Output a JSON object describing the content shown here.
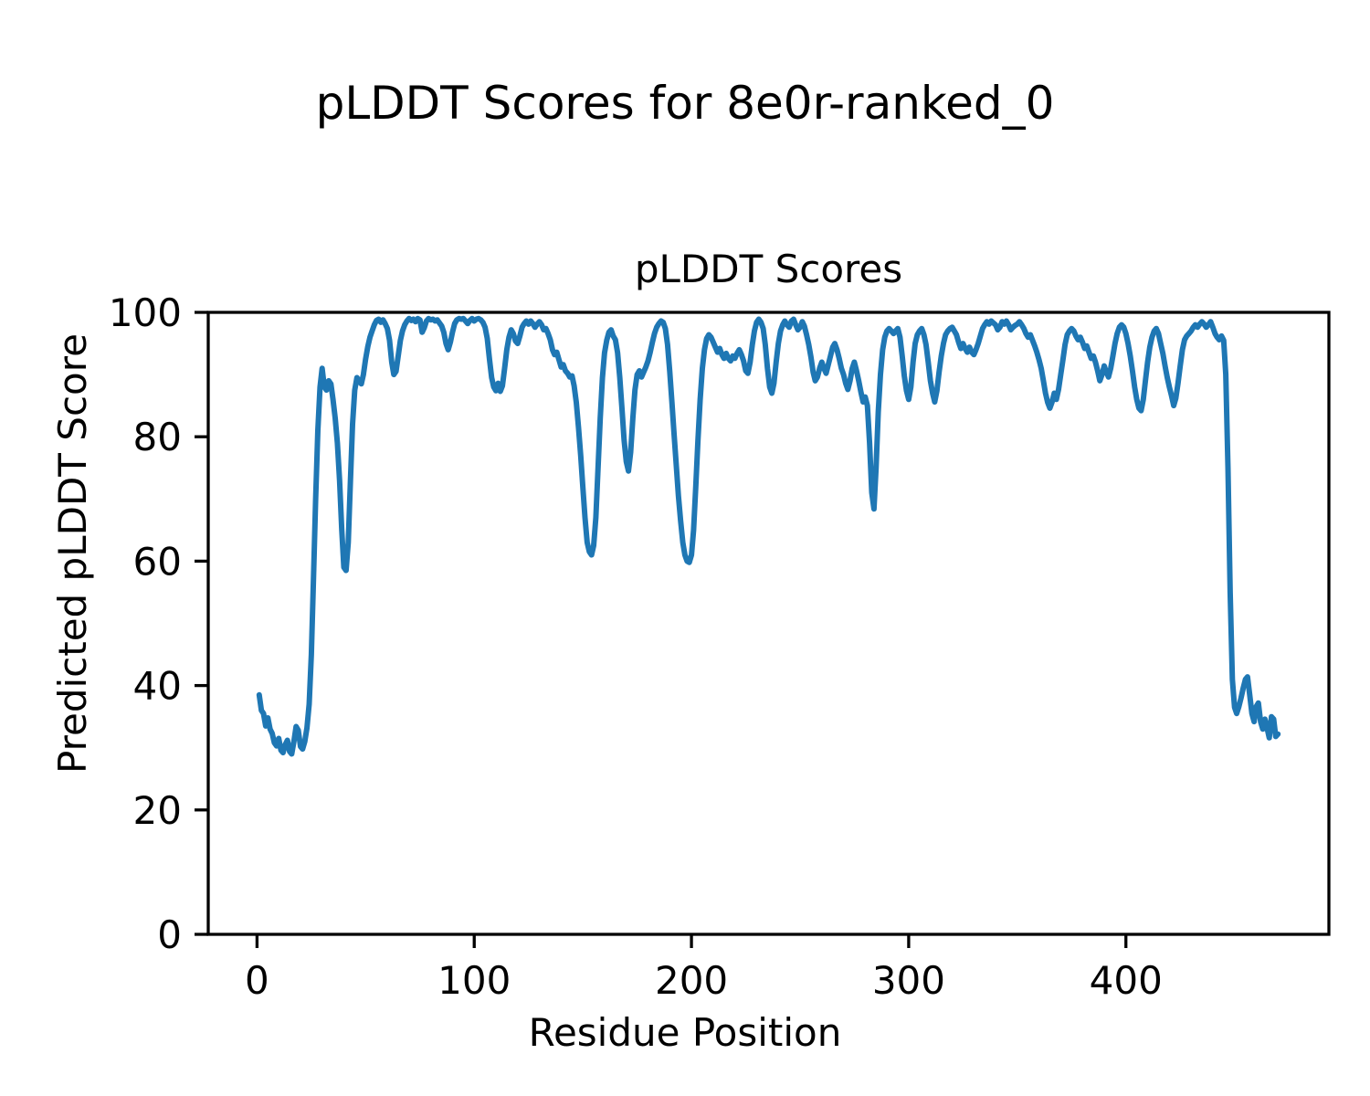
{
  "figure": {
    "suptitle": "pLDDT Scores for 8e0r-ranked_0",
    "background_color": "#ffffff",
    "text_color": "#000000"
  },
  "chart_data": {
    "type": "line",
    "title": "pLDDT Scores",
    "xlabel": "Residue Position",
    "ylabel": "Predicted pLDDT Score",
    "xlim": [
      -22.45,
      493.45
    ],
    "ylim": [
      0,
      100
    ],
    "xticks": [
      0,
      100,
      200,
      300,
      400
    ],
    "yticks": [
      0,
      20,
      40,
      60,
      80,
      100
    ],
    "grid": false,
    "legend": null,
    "line_color": "#1f77b4",
    "axis_color": "#000000",
    "series": [
      {
        "name": "pLDDT",
        "x_start": 1,
        "x_step": 1,
        "y": [
          38.5,
          36,
          35.5,
          33.5,
          34.8,
          33,
          32.3,
          30.8,
          30.3,
          31.5,
          29.6,
          29.2,
          30.5,
          31.2,
          29.4,
          29,
          31,
          33.4,
          32.8,
          30.2,
          29.8,
          31,
          33.2,
          37,
          45,
          57,
          70,
          81,
          88,
          91,
          88,
          87.5,
          89,
          88.5,
          86,
          83,
          79,
          73,
          65,
          59,
          58.5,
          63,
          73,
          82,
          87.5,
          89.5,
          89,
          88.5,
          90,
          92.5,
          94.5,
          96,
          97,
          98,
          98.7,
          98.9,
          98.4,
          98.8,
          98.2,
          97.4,
          95.5,
          92,
          90,
          90.5,
          93,
          95.5,
          97,
          98,
          98.6,
          99,
          98.7,
          98.9,
          98.5,
          99,
          98.8,
          96.8,
          97.5,
          98.6,
          99,
          98.8,
          98.9,
          98.6,
          98.8,
          98.3,
          97.8,
          96.8,
          95,
          94,
          95.2,
          96.8,
          98.2,
          98.8,
          99,
          98.9,
          99,
          98.6,
          98.2,
          98.7,
          99,
          98.6,
          98.9,
          99,
          98.8,
          98.4,
          97.6,
          95.8,
          92.5,
          89.5,
          88,
          87.4,
          88.6,
          87.3,
          88.2,
          91,
          94,
          96,
          97.2,
          96.6,
          95.4,
          95,
          96.2,
          97.6,
          98.2,
          98.6,
          98.1,
          98.6,
          98.2,
          97.6,
          98.1,
          98.5,
          98,
          97.2,
          97.4,
          96.6,
          95.6,
          94,
          93.2,
          93.6,
          92.4,
          91.2,
          91.6,
          90.6,
          90.2,
          89.6,
          89.8,
          88.2,
          85.5,
          81.5,
          77,
          72,
          67,
          63,
          61.5,
          61,
          62.5,
          67,
          75,
          83,
          89.5,
          93.5,
          95.5,
          96.8,
          97.2,
          96.2,
          95.6,
          93.5,
          89.5,
          84.5,
          79.5,
          76,
          74.5,
          77.5,
          83,
          87.5,
          90,
          90.6,
          89.6,
          90.4,
          91.2,
          92.2,
          93.6,
          95.2,
          96.6,
          97.6,
          98.2,
          98.6,
          98.4,
          97.4,
          94.8,
          90.5,
          85.5,
          80.5,
          75.5,
          70.5,
          66.5,
          63,
          61,
          60,
          59.8,
          61,
          65,
          72,
          79.5,
          86,
          91,
          94,
          95.8,
          96.4,
          96,
          95.2,
          94.4,
          93.6,
          94.2,
          93.2,
          92.6,
          93.4,
          92.6,
          92.2,
          93,
          92.6,
          93.4,
          94,
          93.2,
          92.2,
          90.6,
          90.2,
          92,
          94.8,
          97,
          98.4,
          98.9,
          98.4,
          97.4,
          94.8,
          91,
          88,
          87,
          88.6,
          92,
          95,
          97,
          98,
          98.6,
          98,
          97.6,
          98.6,
          98.9,
          98,
          97.2,
          97.6,
          98.5,
          97.8,
          96.4,
          94.8,
          92.8,
          90.4,
          89,
          89.6,
          91,
          92,
          91,
          90.2,
          91.6,
          93,
          94.4,
          95,
          94,
          92.6,
          91,
          90,
          88.6,
          87.6,
          89,
          91,
          92,
          90.6,
          89,
          87.2,
          85.6,
          86.4,
          85,
          79,
          71,
          68.4,
          75,
          84,
          90,
          94,
          96,
          97,
          97.4,
          97,
          96.6,
          97,
          97.4,
          96,
          93,
          89.8,
          87.4,
          86,
          88,
          92,
          95,
          96.4,
          97,
          97.4,
          96.4,
          94.8,
          92,
          89,
          87,
          85.6,
          87.4,
          90.4,
          93,
          95,
          96.4,
          97,
          97.4,
          97.6,
          97,
          96.4,
          95.2,
          94.2,
          95,
          94.2,
          93.6,
          94.4,
          93.6,
          93.2,
          94,
          95,
          96.2,
          97.4,
          98,
          98.5,
          98.1,
          98.6,
          98.3,
          98,
          97.2,
          97.6,
          98.5,
          98.1,
          98.6,
          98,
          97.2,
          97.6,
          97.9,
          98.1,
          98.5,
          98,
          97.4,
          96.6,
          96,
          96.4,
          95.5,
          94.6,
          93.6,
          92.4,
          91,
          89,
          87,
          85.5,
          84.6,
          85.6,
          87,
          86,
          87.6,
          90,
          92.4,
          94.8,
          96.4,
          97,
          97.4,
          97,
          96.2,
          95.6,
          96,
          95.2,
          94.2,
          94.6,
          93.6,
          92.6,
          93,
          92,
          90.6,
          89,
          90,
          91.4,
          90.4,
          89.6,
          91,
          93,
          95,
          96.6,
          97.6,
          98,
          97.6,
          96.6,
          95,
          93,
          90.6,
          88,
          86,
          84.6,
          84.2,
          86,
          89,
          92,
          94.4,
          96,
          97,
          97.4,
          96.6,
          95,
          93.4,
          91.4,
          89.6,
          88,
          86.6,
          85,
          86.2,
          88.6,
          91.4,
          94,
          95.6,
          96.2,
          96.6,
          97,
          97.6,
          98,
          97.6,
          98.1,
          98.5,
          98.1,
          97.6,
          98,
          98.5,
          97.6,
          96.6,
          96,
          95.6,
          96.2,
          95.5,
          90,
          75,
          55,
          41,
          36.5,
          35.5,
          36.6,
          38,
          39.6,
          41,
          41.4,
          38.5,
          35.5,
          34.2,
          36.6,
          37.2,
          34.2,
          33,
          34.6,
          33.2,
          31.6,
          35,
          34.6,
          31.8,
          32.2
        ]
      }
    ]
  }
}
